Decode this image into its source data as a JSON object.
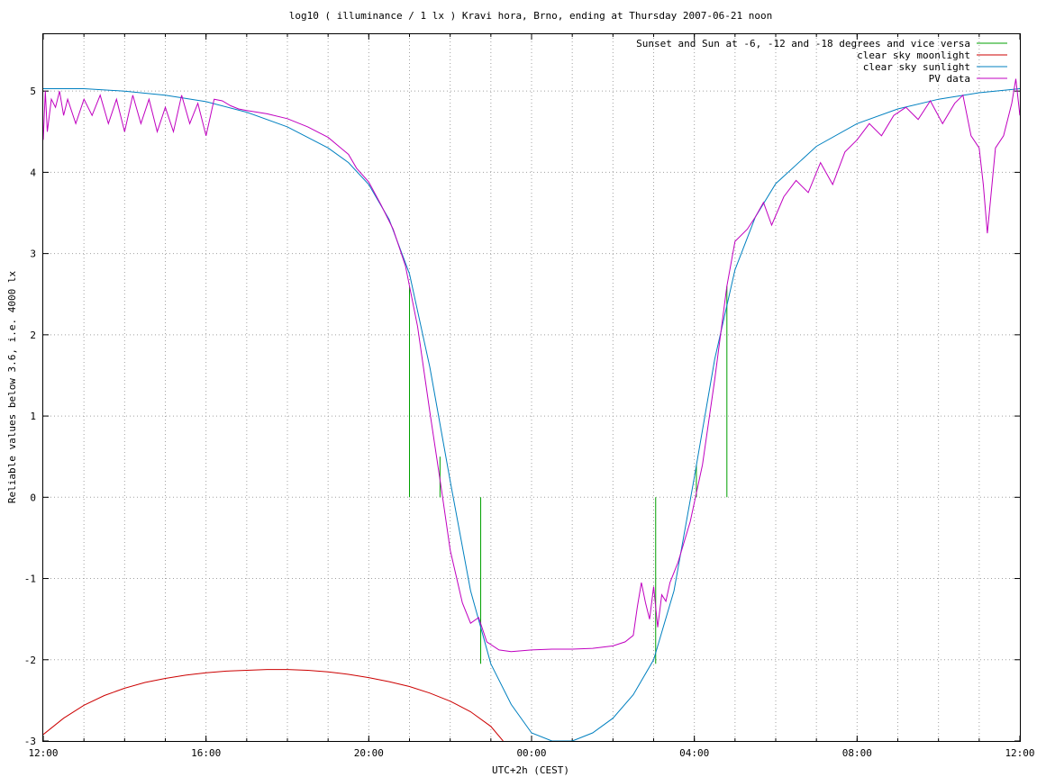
{
  "chart_data": {
    "type": "line",
    "title": "log10 ( illuminance / 1 lx ) Kravi hora, Brno, ending at Thursday 2007-06-21 noon",
    "xlabel": "UTC+2h (CEST)",
    "ylabel": "Reliable values below 3.6, i.e. 4000 lx",
    "xlim": [
      12,
      36
    ],
    "ylim": [
      -3,
      5.7
    ],
    "x_ticks": [
      {
        "value": 12,
        "label": "12:00"
      },
      {
        "value": 16,
        "label": "16:00"
      },
      {
        "value": 20,
        "label": "20:00"
      },
      {
        "value": 24,
        "label": "00:00"
      },
      {
        "value": 28,
        "label": "04:00"
      },
      {
        "value": 32,
        "label": "08:00"
      },
      {
        "value": 36,
        "label": "12:00"
      }
    ],
    "x_minor_step": 1,
    "y_ticks": [
      -3,
      -2,
      -1,
      0,
      1,
      2,
      3,
      4,
      5
    ],
    "grid": true,
    "legend_position": "top-right",
    "series": [
      {
        "name": "Sunset and Sun at -6, -12 and -18 degrees and vice versa",
        "color": "#00a000",
        "kind": "vertical-markers",
        "markers": [
          {
            "x": 21.0,
            "y0": 0,
            "y1": 2.6
          },
          {
            "x": 21.75,
            "y0": 0,
            "y1": 0.5
          },
          {
            "x": 22.75,
            "y0": 0,
            "y1": -2.05
          },
          {
            "x": 27.05,
            "y0": 0,
            "y1": -2.05
          },
          {
            "x": 28.05,
            "y0": 0,
            "y1": 0.4
          },
          {
            "x": 28.8,
            "y0": 0,
            "y1": 2.6
          }
        ]
      },
      {
        "name": "clear sky moonlight",
        "color": "#cc0000",
        "x": [
          12.0,
          12.5,
          13.0,
          13.5,
          14.0,
          14.5,
          15.0,
          15.5,
          16.0,
          16.5,
          17.0,
          17.5,
          18.0,
          18.5,
          19.0,
          19.5,
          20.0,
          20.5,
          21.0,
          21.5,
          22.0,
          22.5,
          23.0,
          23.3
        ],
        "y": [
          -2.92,
          -2.72,
          -2.56,
          -2.44,
          -2.35,
          -2.28,
          -2.23,
          -2.19,
          -2.16,
          -2.14,
          -2.13,
          -2.12,
          -2.12,
          -2.13,
          -2.15,
          -2.18,
          -2.22,
          -2.27,
          -2.33,
          -2.41,
          -2.51,
          -2.64,
          -2.82,
          -3.0
        ]
      },
      {
        "name": "clear sky sunlight",
        "color": "#0080c0",
        "x": [
          12.0,
          13.0,
          14.0,
          15.0,
          16.0,
          17.0,
          18.0,
          19.0,
          19.5,
          20.0,
          20.5,
          21.0,
          21.5,
          22.0,
          22.5,
          23.0,
          23.5,
          24.0,
          24.5,
          25.0,
          25.5,
          26.0,
          26.5,
          27.0,
          27.5,
          28.0,
          28.5,
          29.0,
          29.5,
          30.0,
          31.0,
          32.0,
          33.0,
          34.0,
          35.0,
          36.0
        ],
        "y": [
          5.03,
          5.03,
          5.0,
          4.95,
          4.87,
          4.74,
          4.56,
          4.3,
          4.12,
          3.85,
          3.42,
          2.75,
          1.6,
          0.2,
          -1.15,
          -2.05,
          -2.55,
          -2.9,
          -3.0,
          -3.0,
          -2.9,
          -2.72,
          -2.43,
          -2.0,
          -1.15,
          0.25,
          1.7,
          2.8,
          3.45,
          3.86,
          4.32,
          4.6,
          4.78,
          4.9,
          4.98,
          5.03
        ]
      },
      {
        "name": "PV data",
        "color": "#c000c0",
        "x": [
          12.0,
          12.05,
          12.1,
          12.2,
          12.3,
          12.4,
          12.5,
          12.6,
          12.8,
          13.0,
          13.2,
          13.4,
          13.6,
          13.8,
          14.0,
          14.2,
          14.4,
          14.6,
          14.8,
          15.0,
          15.2,
          15.4,
          15.6,
          15.8,
          16.0,
          16.2,
          16.4,
          16.6,
          16.8,
          17.0,
          17.5,
          18.0,
          18.5,
          19.0,
          19.5,
          19.7,
          20.0,
          20.3,
          20.6,
          20.9,
          21.2,
          21.5,
          21.8,
          22.0,
          22.3,
          22.5,
          22.7,
          22.9,
          23.2,
          23.5,
          24.0,
          24.5,
          25.0,
          25.5,
          26.0,
          26.3,
          26.5,
          26.6,
          26.7,
          26.8,
          26.9,
          27.0,
          27.1,
          27.2,
          27.3,
          27.4,
          27.6,
          27.9,
          28.2,
          28.5,
          28.8,
          29.0,
          29.3,
          29.5,
          29.7,
          29.9,
          30.2,
          30.5,
          30.8,
          31.1,
          31.4,
          31.7,
          32.0,
          32.3,
          32.6,
          32.9,
          33.2,
          33.5,
          33.8,
          34.1,
          34.4,
          34.6,
          34.8,
          35.0,
          35.1,
          35.2,
          35.4,
          35.6,
          35.8,
          35.9,
          36.0
        ],
        "y": [
          4.4,
          5.0,
          4.5,
          4.9,
          4.8,
          5.0,
          4.7,
          4.9,
          4.6,
          4.9,
          4.7,
          4.95,
          4.6,
          4.9,
          4.5,
          4.95,
          4.6,
          4.9,
          4.5,
          4.8,
          4.5,
          4.95,
          4.6,
          4.85,
          4.45,
          4.9,
          4.88,
          4.82,
          4.78,
          4.76,
          4.72,
          4.66,
          4.56,
          4.43,
          4.22,
          4.05,
          3.88,
          3.6,
          3.3,
          2.85,
          2.1,
          1.05,
          0.05,
          -0.65,
          -1.3,
          -1.55,
          -1.48,
          -1.78,
          -1.88,
          -1.9,
          -1.88,
          -1.87,
          -1.87,
          -1.86,
          -1.83,
          -1.78,
          -1.7,
          -1.35,
          -1.05,
          -1.3,
          -1.5,
          -1.1,
          -1.6,
          -1.2,
          -1.28,
          -1.05,
          -0.8,
          -0.3,
          0.4,
          1.45,
          2.6,
          3.15,
          3.3,
          3.45,
          3.63,
          3.35,
          3.7,
          3.9,
          3.75,
          4.12,
          3.85,
          4.25,
          4.4,
          4.6,
          4.45,
          4.7,
          4.8,
          4.65,
          4.88,
          4.6,
          4.85,
          4.95,
          4.45,
          4.3,
          3.85,
          3.25,
          4.3,
          4.45,
          4.85,
          5.15,
          4.7
        ]
      }
    ]
  }
}
